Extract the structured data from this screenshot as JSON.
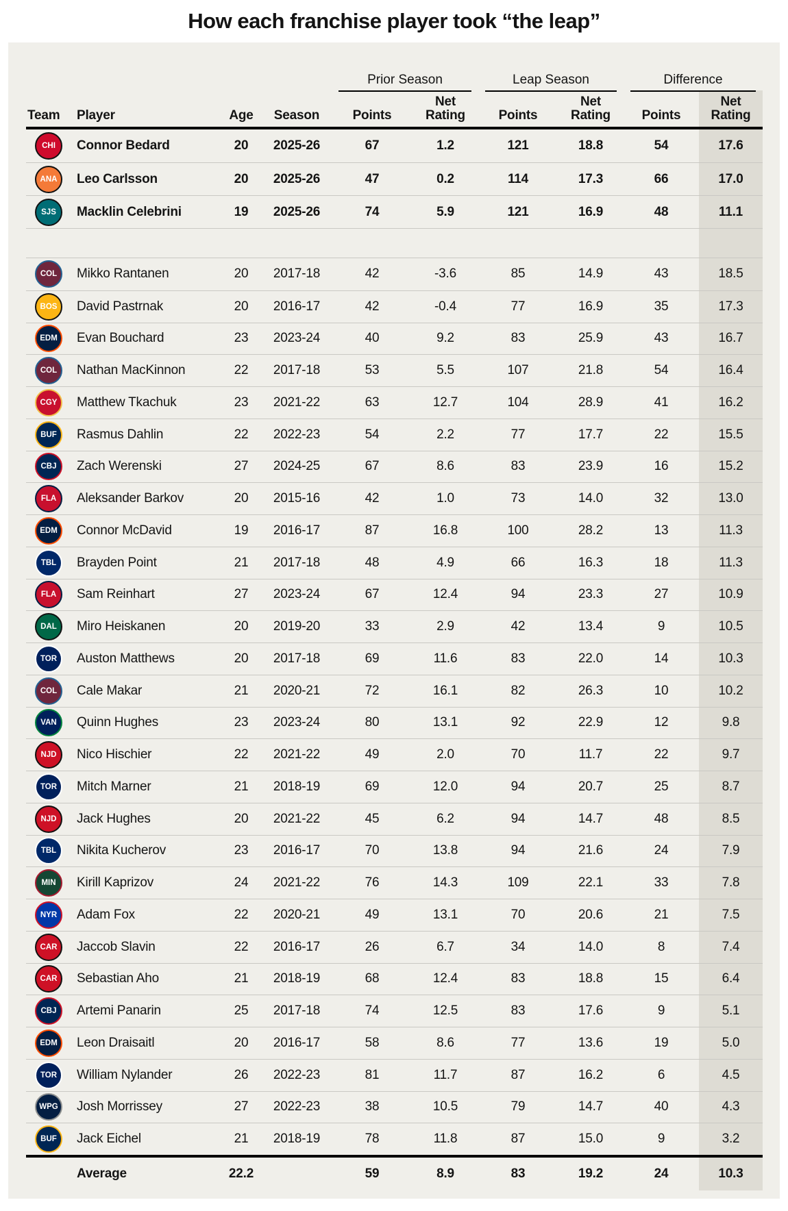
{
  "title": "How each franchise player took “the leap”",
  "colors": {
    "page_bg": "#ffffff",
    "card_bg": "#f0efea",
    "highlight_col_bg": "#dedcd4",
    "divider": "#c9c8c3",
    "rule": "#000000",
    "text": "#141414"
  },
  "chart_data": {
    "type": "table",
    "title": "How each franchise player took “the leap”",
    "group_headers": [
      "Prior Season",
      "Leap Season",
      "Difference"
    ],
    "columns": [
      "Team",
      "Player",
      "Age",
      "Season",
      "Points",
      "Net Rating",
      "Points",
      "Net Rating",
      "Points",
      "Net Rating"
    ],
    "highlighted_column": "Difference Net Rating",
    "current_season_rows": [
      {
        "team": "Chicago Blackhawks",
        "abbr": "CHI",
        "primary": "#cf0a2c",
        "secondary": "#111111",
        "player": "Connor Bedard",
        "age": "20",
        "season": "2025-26",
        "prior_points": "67",
        "prior_net": "1.2",
        "leap_points": "121",
        "leap_net": "18.8",
        "diff_points": "54",
        "diff_net": "17.6"
      },
      {
        "team": "Anaheim Ducks",
        "abbr": "ANA",
        "primary": "#f47a38",
        "secondary": "#111111",
        "player": "Leo Carlsson",
        "age": "20",
        "season": "2025-26",
        "prior_points": "47",
        "prior_net": "0.2",
        "leap_points": "114",
        "leap_net": "17.3",
        "diff_points": "66",
        "diff_net": "17.0"
      },
      {
        "team": "San Jose Sharks",
        "abbr": "SJS",
        "primary": "#006d75",
        "secondary": "#111111",
        "player": "Macklin Celebrini",
        "age": "19",
        "season": "2025-26",
        "prior_points": "74",
        "prior_net": "5.9",
        "leap_points": "121",
        "leap_net": "16.9",
        "diff_points": "48",
        "diff_net": "11.1"
      }
    ],
    "historical_rows": [
      {
        "team": "Colorado Avalanche",
        "abbr": "COL",
        "primary": "#6f263d",
        "secondary": "#236192",
        "player": "Mikko Rantanen",
        "age": "20",
        "season": "2017-18",
        "prior_points": "42",
        "prior_net": "-3.6",
        "leap_points": "85",
        "leap_net": "14.9",
        "diff_points": "43",
        "diff_net": "18.5"
      },
      {
        "team": "Boston Bruins",
        "abbr": "BOS",
        "primary": "#fcb514",
        "secondary": "#111111",
        "player": "David Pastrnak",
        "age": "20",
        "season": "2016-17",
        "prior_points": "42",
        "prior_net": "-0.4",
        "leap_points": "77",
        "leap_net": "16.9",
        "diff_points": "35",
        "diff_net": "17.3"
      },
      {
        "team": "Edmonton Oilers",
        "abbr": "EDM",
        "primary": "#041e42",
        "secondary": "#ff4c00",
        "player": "Evan Bouchard",
        "age": "23",
        "season": "2023-24",
        "prior_points": "40",
        "prior_net": "9.2",
        "leap_points": "83",
        "leap_net": "25.9",
        "diff_points": "43",
        "diff_net": "16.7"
      },
      {
        "team": "Colorado Avalanche",
        "abbr": "COL",
        "primary": "#6f263d",
        "secondary": "#236192",
        "player": "Nathan MacKinnon",
        "age": "22",
        "season": "2017-18",
        "prior_points": "53",
        "prior_net": "5.5",
        "leap_points": "107",
        "leap_net": "21.8",
        "diff_points": "54",
        "diff_net": "16.4"
      },
      {
        "team": "Calgary Flames",
        "abbr": "CGY",
        "primary": "#c8102e",
        "secondary": "#f1be48",
        "player": "Matthew Tkachuk",
        "age": "23",
        "season": "2021-22",
        "prior_points": "63",
        "prior_net": "12.7",
        "leap_points": "104",
        "leap_net": "28.9",
        "diff_points": "41",
        "diff_net": "16.2"
      },
      {
        "team": "Buffalo Sabres",
        "abbr": "BUF",
        "primary": "#002654",
        "secondary": "#fcb514",
        "player": "Rasmus Dahlin",
        "age": "22",
        "season": "2022-23",
        "prior_points": "54",
        "prior_net": "2.2",
        "leap_points": "77",
        "leap_net": "17.7",
        "diff_points": "22",
        "diff_net": "15.5"
      },
      {
        "team": "Columbus Blue Jackets",
        "abbr": "CBJ",
        "primary": "#002654",
        "secondary": "#ce1126",
        "player": "Zach Werenski",
        "age": "27",
        "season": "2024-25",
        "prior_points": "67",
        "prior_net": "8.6",
        "leap_points": "83",
        "leap_net": "23.9",
        "diff_points": "16",
        "diff_net": "15.2"
      },
      {
        "team": "Florida Panthers",
        "abbr": "FLA",
        "primary": "#c8102e",
        "secondary": "#041e42",
        "player": "Aleksander Barkov",
        "age": "20",
        "season": "2015-16",
        "prior_points": "42",
        "prior_net": "1.0",
        "leap_points": "73",
        "leap_net": "14.0",
        "diff_points": "32",
        "diff_net": "13.0"
      },
      {
        "team": "Edmonton Oilers",
        "abbr": "EDM",
        "primary": "#041e42",
        "secondary": "#ff4c00",
        "player": "Connor McDavid",
        "age": "19",
        "season": "2016-17",
        "prior_points": "87",
        "prior_net": "16.8",
        "leap_points": "100",
        "leap_net": "28.2",
        "diff_points": "13",
        "diff_net": "11.3"
      },
      {
        "team": "Tampa Bay Lightning",
        "abbr": "TBL",
        "primary": "#002868",
        "secondary": "#ffffff",
        "player": "Brayden Point",
        "age": "21",
        "season": "2017-18",
        "prior_points": "48",
        "prior_net": "4.9",
        "leap_points": "66",
        "leap_net": "16.3",
        "diff_points": "18",
        "diff_net": "11.3"
      },
      {
        "team": "Florida Panthers",
        "abbr": "FLA",
        "primary": "#c8102e",
        "secondary": "#041e42",
        "player": "Sam Reinhart",
        "age": "27",
        "season": "2023-24",
        "prior_points": "67",
        "prior_net": "12.4",
        "leap_points": "94",
        "leap_net": "23.3",
        "diff_points": "27",
        "diff_net": "10.9"
      },
      {
        "team": "Dallas Stars",
        "abbr": "DAL",
        "primary": "#006847",
        "secondary": "#111111",
        "player": "Miro Heiskanen",
        "age": "20",
        "season": "2019-20",
        "prior_points": "33",
        "prior_net": "2.9",
        "leap_points": "42",
        "leap_net": "13.4",
        "diff_points": "9",
        "diff_net": "10.5"
      },
      {
        "team": "Toronto Maple Leafs",
        "abbr": "TOR",
        "primary": "#00205b",
        "secondary": "#ffffff",
        "player": "Auston Matthews",
        "age": "20",
        "season": "2017-18",
        "prior_points": "69",
        "prior_net": "11.6",
        "leap_points": "83",
        "leap_net": "22.0",
        "diff_points": "14",
        "diff_net": "10.3"
      },
      {
        "team": "Colorado Avalanche",
        "abbr": "COL",
        "primary": "#6f263d",
        "secondary": "#236192",
        "player": "Cale Makar",
        "age": "21",
        "season": "2020-21",
        "prior_points": "72",
        "prior_net": "16.1",
        "leap_points": "82",
        "leap_net": "26.3",
        "diff_points": "10",
        "diff_net": "10.2"
      },
      {
        "team": "Vancouver Canucks",
        "abbr": "VAN",
        "primary": "#00205b",
        "secondary": "#00843d",
        "player": "Quinn Hughes",
        "age": "23",
        "season": "2023-24",
        "prior_points": "80",
        "prior_net": "13.1",
        "leap_points": "92",
        "leap_net": "22.9",
        "diff_points": "12",
        "diff_net": "9.8"
      },
      {
        "team": "New Jersey Devils",
        "abbr": "NJD",
        "primary": "#ce1126",
        "secondary": "#111111",
        "player": "Nico Hischier",
        "age": "22",
        "season": "2021-22",
        "prior_points": "49",
        "prior_net": "2.0",
        "leap_points": "70",
        "leap_net": "11.7",
        "diff_points": "22",
        "diff_net": "9.7"
      },
      {
        "team": "Toronto Maple Leafs",
        "abbr": "TOR",
        "primary": "#00205b",
        "secondary": "#ffffff",
        "player": "Mitch Marner",
        "age": "21",
        "season": "2018-19",
        "prior_points": "69",
        "prior_net": "12.0",
        "leap_points": "94",
        "leap_net": "20.7",
        "diff_points": "25",
        "diff_net": "8.7"
      },
      {
        "team": "New Jersey Devils",
        "abbr": "NJD",
        "primary": "#ce1126",
        "secondary": "#111111",
        "player": "Jack Hughes",
        "age": "20",
        "season": "2021-22",
        "prior_points": "45",
        "prior_net": "6.2",
        "leap_points": "94",
        "leap_net": "14.7",
        "diff_points": "48",
        "diff_net": "8.5"
      },
      {
        "team": "Tampa Bay Lightning",
        "abbr": "TBL",
        "primary": "#002868",
        "secondary": "#ffffff",
        "player": "Nikita Kucherov",
        "age": "23",
        "season": "2016-17",
        "prior_points": "70",
        "prior_net": "13.8",
        "leap_points": "94",
        "leap_net": "21.6",
        "diff_points": "24",
        "diff_net": "7.9"
      },
      {
        "team": "Minnesota Wild",
        "abbr": "MIN",
        "primary": "#154734",
        "secondary": "#a6192e",
        "player": "Kirill Kaprizov",
        "age": "24",
        "season": "2021-22",
        "prior_points": "76",
        "prior_net": "14.3",
        "leap_points": "109",
        "leap_net": "22.1",
        "diff_points": "33",
        "diff_net": "7.8"
      },
      {
        "team": "New York Rangers",
        "abbr": "NYR",
        "primary": "#0038a8",
        "secondary": "#ce1126",
        "player": "Adam Fox",
        "age": "22",
        "season": "2020-21",
        "prior_points": "49",
        "prior_net": "13.1",
        "leap_points": "70",
        "leap_net": "20.6",
        "diff_points": "21",
        "diff_net": "7.5"
      },
      {
        "team": "Carolina Hurricanes",
        "abbr": "CAR",
        "primary": "#ce1126",
        "secondary": "#111111",
        "player": "Jaccob Slavin",
        "age": "22",
        "season": "2016-17",
        "prior_points": "26",
        "prior_net": "6.7",
        "leap_points": "34",
        "leap_net": "14.0",
        "diff_points": "8",
        "diff_net": "7.4"
      },
      {
        "team": "Carolina Hurricanes",
        "abbr": "CAR",
        "primary": "#ce1126",
        "secondary": "#111111",
        "player": "Sebastian Aho",
        "age": "21",
        "season": "2018-19",
        "prior_points": "68",
        "prior_net": "12.4",
        "leap_points": "83",
        "leap_net": "18.8",
        "diff_points": "15",
        "diff_net": "6.4"
      },
      {
        "team": "Columbus Blue Jackets",
        "abbr": "CBJ",
        "primary": "#002654",
        "secondary": "#ce1126",
        "player": "Artemi Panarin",
        "age": "25",
        "season": "2017-18",
        "prior_points": "74",
        "prior_net": "12.5",
        "leap_points": "83",
        "leap_net": "17.6",
        "diff_points": "9",
        "diff_net": "5.1"
      },
      {
        "team": "Edmonton Oilers",
        "abbr": "EDM",
        "primary": "#041e42",
        "secondary": "#ff4c00",
        "player": "Leon Draisaitl",
        "age": "20",
        "season": "2016-17",
        "prior_points": "58",
        "prior_net": "8.6",
        "leap_points": "77",
        "leap_net": "13.6",
        "diff_points": "19",
        "diff_net": "5.0"
      },
      {
        "team": "Toronto Maple Leafs",
        "abbr": "TOR",
        "primary": "#00205b",
        "secondary": "#ffffff",
        "player": "William Nylander",
        "age": "26",
        "season": "2022-23",
        "prior_points": "81",
        "prior_net": "11.7",
        "leap_points": "87",
        "leap_net": "16.2",
        "diff_points": "6",
        "diff_net": "4.5"
      },
      {
        "team": "Winnipeg Jets",
        "abbr": "WPG",
        "primary": "#041e42",
        "secondary": "#8e9090",
        "player": "Josh Morrissey",
        "age": "27",
        "season": "2022-23",
        "prior_points": "38",
        "prior_net": "10.5",
        "leap_points": "79",
        "leap_net": "14.7",
        "diff_points": "40",
        "diff_net": "4.3"
      },
      {
        "team": "Buffalo Sabres",
        "abbr": "BUF",
        "primary": "#002654",
        "secondary": "#fcb514",
        "player": "Jack Eichel",
        "age": "21",
        "season": "2018-19",
        "prior_points": "78",
        "prior_net": "11.8",
        "leap_points": "87",
        "leap_net": "15.0",
        "diff_points": "9",
        "diff_net": "3.2"
      }
    ],
    "average_row": {
      "label": "Average",
      "age": "22.2",
      "prior_points": "59",
      "prior_net": "8.9",
      "leap_points": "83",
      "leap_net": "19.2",
      "diff_points": "24",
      "diff_net": "10.3"
    }
  }
}
